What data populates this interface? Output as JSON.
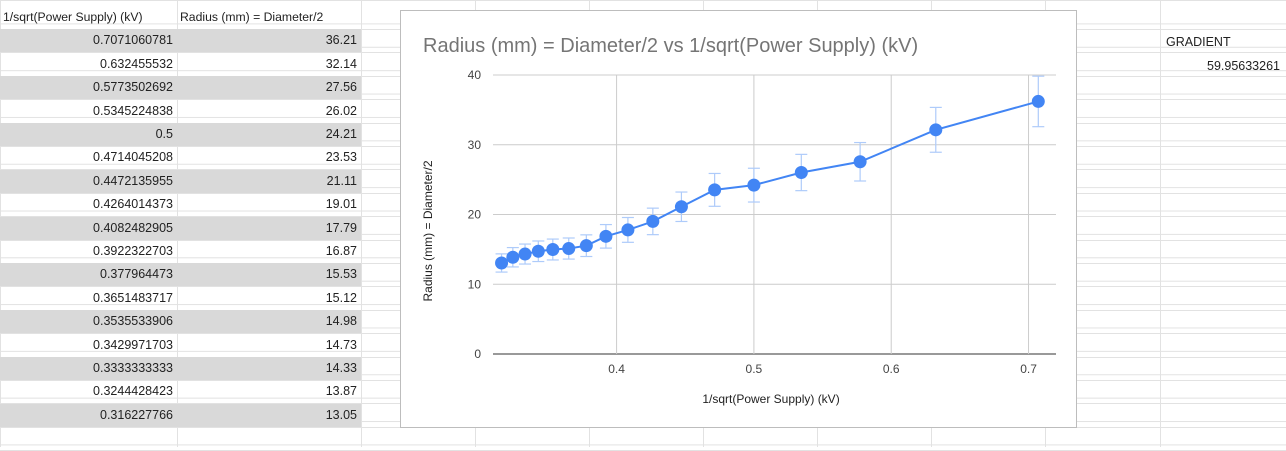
{
  "table": {
    "headers": [
      "1/sqrt(Power Supply) (kV)",
      "Radius (mm) = Diameter/2"
    ],
    "rows": [
      [
        "0.7071060781",
        "36.21"
      ],
      [
        "0.632455532",
        "32.14"
      ],
      [
        "0.5773502692",
        "27.56"
      ],
      [
        "0.5345224838",
        "26.02"
      ],
      [
        "0.5",
        "24.21"
      ],
      [
        "0.4714045208",
        "23.53"
      ],
      [
        "0.4472135955",
        "21.11"
      ],
      [
        "0.4264014373",
        "19.01"
      ],
      [
        "0.4082482905",
        "17.79"
      ],
      [
        "0.3922322703",
        "16.87"
      ],
      [
        "0.377964473",
        "15.53"
      ],
      [
        "0.3651483717",
        "15.12"
      ],
      [
        "0.3535533906",
        "14.98"
      ],
      [
        "0.3429971703",
        "14.73"
      ],
      [
        "0.3333333333",
        "14.33"
      ],
      [
        "0.3244428423",
        "13.87"
      ],
      [
        "0.316227766",
        "13.05"
      ]
    ]
  },
  "gradient": {
    "label": "GRADIENT",
    "value": "59.95633261"
  },
  "chart_data": {
    "type": "line",
    "title": "Radius (mm) = Diameter/2 vs 1/sqrt(Power Supply) (kV)",
    "xlabel": "1/sqrt(Power Supply) (kV)",
    "ylabel": "Radius (mm) = Diameter/2",
    "xlim": [
      0.31,
      0.72
    ],
    "ylim": [
      0,
      40
    ],
    "x_ticks": [
      "0.4",
      "0.5",
      "0.6",
      "0.7"
    ],
    "y_ticks": [
      "0",
      "10",
      "20",
      "30",
      "40"
    ],
    "grid": true,
    "legend": "none",
    "series_color": "#4285f4",
    "errorbar_color": "#aecbfa",
    "error_fraction": 0.1,
    "x": [
      0.7071060781,
      0.632455532,
      0.5773502692,
      0.5345224838,
      0.5,
      0.4714045208,
      0.4472135955,
      0.4264014373,
      0.4082482905,
      0.3922322703,
      0.377964473,
      0.3651483717,
      0.3535533906,
      0.3429971703,
      0.3333333333,
      0.3244428423,
      0.316227766
    ],
    "y": [
      36.21,
      32.14,
      27.56,
      26.02,
      24.21,
      23.53,
      21.11,
      19.01,
      17.79,
      16.87,
      15.53,
      15.12,
      14.98,
      14.73,
      14.33,
      13.87,
      13.05
    ]
  }
}
